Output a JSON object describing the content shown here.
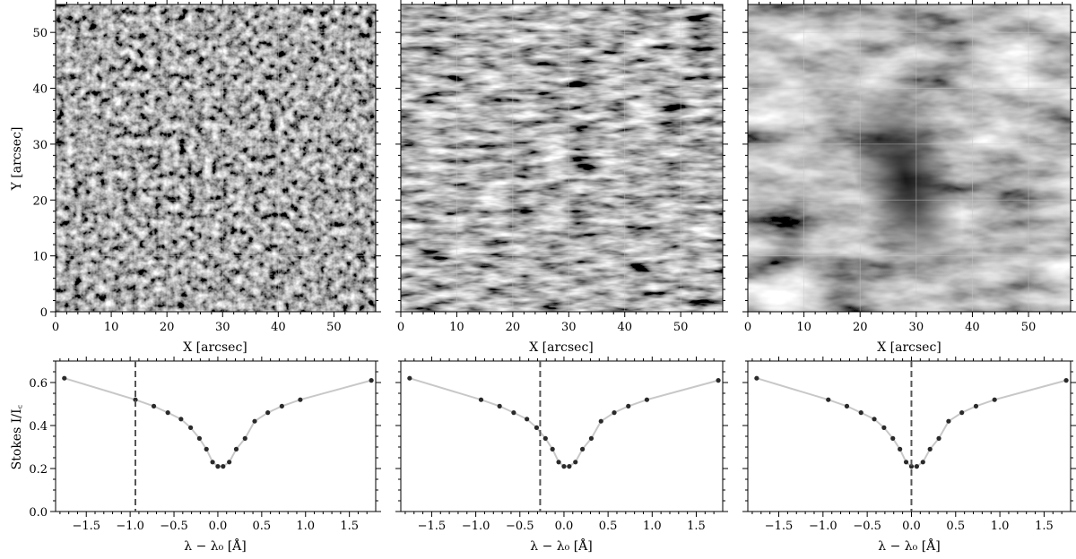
{
  "chart_data": [
    {
      "type": "heatmap",
      "panel": "image-1",
      "description_visible": "grayscale solar intensity map (granulation with bright points)",
      "xlabel": "X [arcsec]",
      "ylabel": "Y [arcsec]",
      "xlim": [
        0,
        57.5
      ],
      "ylim": [
        0,
        55
      ],
      "xticks": [
        "0",
        "10",
        "20",
        "30",
        "40",
        "50"
      ],
      "yticks": [
        "0",
        "10",
        "20",
        "30",
        "40",
        "50"
      ],
      "grid": true
    },
    {
      "type": "heatmap",
      "panel": "image-2",
      "description_visible": "grayscale solar intensity map (fibrils near line core)",
      "xlabel": "X [arcsec]",
      "ylabel": "",
      "xlim": [
        0,
        57.5
      ],
      "ylim": [
        0,
        55
      ],
      "xticks": [
        "0",
        "10",
        "20",
        "30",
        "40",
        "50"
      ],
      "grid": true
    },
    {
      "type": "heatmap",
      "panel": "image-3",
      "description_visible": "grayscale solar intensity map (line core, dark filament)",
      "xlabel": "X [arcsec]",
      "ylabel": "",
      "xlim": [
        0,
        57.5
      ],
      "ylim": [
        0,
        55
      ],
      "xticks": [
        "0",
        "10",
        "20",
        "30",
        "40",
        "50"
      ],
      "grid": true
    },
    {
      "type": "line",
      "panel": "profile-1",
      "xlabel": "λ − λ₀ [Å]",
      "ylabel": "Stokes I/I꜀",
      "xlim": [
        -1.85,
        1.8
      ],
      "ylim": [
        0.0,
        0.7
      ],
      "xticks": [
        "−1.5",
        "−1.0",
        "−0.5",
        "0.0",
        "0.5",
        "1.0",
        "1.5"
      ],
      "yticks": [
        "0.0",
        "0.2",
        "0.4",
        "0.6"
      ],
      "x": [
        -1.75,
        -0.94,
        -0.73,
        -0.57,
        -0.42,
        -0.31,
        -0.21,
        -0.13,
        -0.06,
        0.0,
        0.06,
        0.13,
        0.21,
        0.31,
        0.42,
        0.57,
        0.73,
        0.94,
        1.75
      ],
      "y": [
        0.62,
        0.52,
        0.49,
        0.46,
        0.43,
        0.39,
        0.34,
        0.29,
        0.23,
        0.21,
        0.21,
        0.23,
        0.29,
        0.34,
        0.42,
        0.46,
        0.49,
        0.52,
        0.61
      ],
      "marker_line": -0.94
    },
    {
      "type": "line",
      "panel": "profile-2",
      "xlabel": "λ − λ₀ [Å]",
      "ylabel": "",
      "xlim": [
        -1.85,
        1.8
      ],
      "ylim": [
        0.0,
        0.7
      ],
      "xticks": [
        "−1.5",
        "−1.0",
        "−0.5",
        "0.0",
        "0.5",
        "1.0",
        "1.5"
      ],
      "x": [
        -1.75,
        -0.94,
        -0.73,
        -0.57,
        -0.42,
        -0.31,
        -0.21,
        -0.13,
        -0.06,
        0.0,
        0.06,
        0.13,
        0.21,
        0.31,
        0.42,
        0.57,
        0.73,
        0.94,
        1.75
      ],
      "y": [
        0.62,
        0.52,
        0.49,
        0.46,
        0.43,
        0.39,
        0.34,
        0.29,
        0.23,
        0.21,
        0.21,
        0.23,
        0.29,
        0.34,
        0.42,
        0.46,
        0.49,
        0.52,
        0.61
      ],
      "marker_line": -0.27
    },
    {
      "type": "line",
      "panel": "profile-3",
      "xlabel": "λ − λ₀ [Å]",
      "ylabel": "",
      "xlim": [
        -1.85,
        1.8
      ],
      "ylim": [
        0.0,
        0.7
      ],
      "xticks": [
        "−1.5",
        "−1.0",
        "−0.5",
        "0.0",
        "0.5",
        "1.0",
        "1.5"
      ],
      "x": [
        -1.75,
        -0.94,
        -0.73,
        -0.57,
        -0.42,
        -0.31,
        -0.21,
        -0.13,
        -0.06,
        0.0,
        0.06,
        0.13,
        0.21,
        0.31,
        0.42,
        0.57,
        0.73,
        0.94,
        1.75
      ],
      "y": [
        0.62,
        0.52,
        0.49,
        0.46,
        0.43,
        0.39,
        0.34,
        0.29,
        0.23,
        0.21,
        0.21,
        0.23,
        0.29,
        0.34,
        0.42,
        0.46,
        0.49,
        0.52,
        0.61
      ],
      "marker_line": 0.0
    }
  ],
  "colors": {
    "profile_line": "#c8c8c8",
    "profile_points": "#2a2a2a",
    "marker_line": "#555555",
    "grid": "#c8c8c8"
  }
}
